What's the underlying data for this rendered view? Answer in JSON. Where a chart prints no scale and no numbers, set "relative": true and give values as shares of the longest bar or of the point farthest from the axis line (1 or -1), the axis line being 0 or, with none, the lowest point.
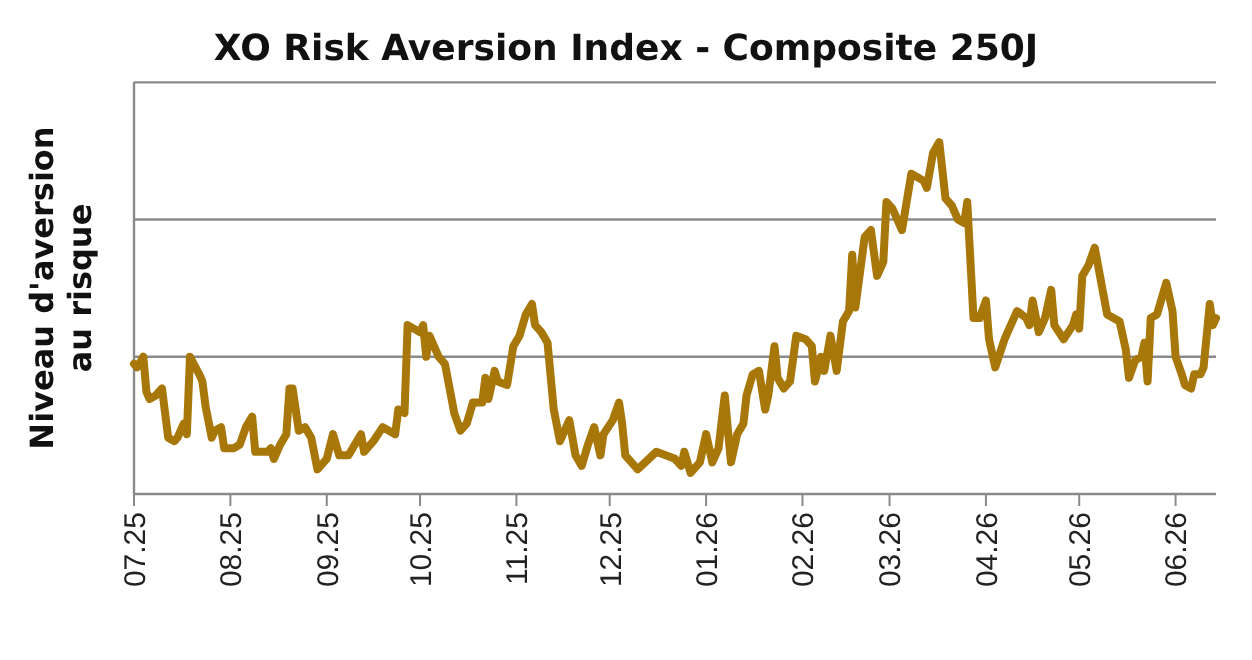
{
  "chart_data": {
    "type": "line",
    "title": "XO Risk Aversion Index - Composite 250J",
    "ylabel": "Niveau d'aversion\nau risque",
    "relative": true,
    "ref_lines": [
      {
        "axis": "y",
        "value": 0.39,
        "color": "#8a8a8a"
      },
      {
        "axis": "y",
        "value": 0.78,
        "color": "#8a8a8a"
      },
      {
        "axis": "y",
        "value": 1.17,
        "color": "#8a8a8a"
      }
    ],
    "marker": "none",
    "line_style": "solid",
    "xlim": [
      "2025-07-01",
      "2026-06-14"
    ],
    "xticks": [
      {
        "value": "2025-07-01",
        "label": "07.25"
      },
      {
        "value": "2025-08-01",
        "label": "08.25"
      },
      {
        "value": "2025-09-01",
        "label": "09.25"
      },
      {
        "value": "2025-10-01",
        "label": "10.25"
      },
      {
        "value": "2025-11-01",
        "label": "11.25"
      },
      {
        "value": "2025-12-01",
        "label": "12.25"
      },
      {
        "value": "2026-01-01",
        "label": "01.26"
      },
      {
        "value": "2026-02-01",
        "label": "02.26"
      },
      {
        "value": "2026-03-01",
        "label": "03.26"
      },
      {
        "value": "2026-04-01",
        "label": "04.26"
      },
      {
        "value": "2026-05-01",
        "label": "05.26"
      },
      {
        "value": "2026-06-01",
        "label": "06.26"
      }
    ],
    "x": [
      "2025-07-01",
      "2025-07-02",
      "2025-07-04",
      "2025-07-05",
      "2025-07-06",
      "2025-07-08",
      "2025-07-10",
      "2025-07-12",
      "2025-07-14",
      "2025-07-15",
      "2025-07-17",
      "2025-07-18",
      "2025-07-19",
      "2025-07-22",
      "2025-07-23",
      "2025-07-24",
      "2025-07-26",
      "2025-07-27",
      "2025-07-29",
      "2025-07-30",
      "2025-08-02",
      "2025-08-04",
      "2025-08-06",
      "2025-08-08",
      "2025-08-09",
      "2025-08-13",
      "2025-08-14",
      "2025-08-15",
      "2025-08-17",
      "2025-08-19",
      "2025-08-20",
      "2025-08-21",
      "2025-08-23",
      "2025-08-25",
      "2025-08-27",
      "2025-08-29",
      "2025-09-01",
      "2025-09-03",
      "2025-09-05",
      "2025-09-08",
      "2025-09-10",
      "2025-09-12",
      "2025-09-13",
      "2025-09-16",
      "2025-09-19",
      "2025-09-23",
      "2025-09-24",
      "2025-09-26",
      "2025-09-27",
      "2025-09-29",
      "2025-10-01",
      "2025-10-02",
      "2025-10-03",
      "2025-10-04",
      "2025-10-07",
      "2025-10-09",
      "2025-10-12",
      "2025-10-14",
      "2025-10-16",
      "2025-10-18",
      "2025-10-21",
      "2025-10-22",
      "2025-10-23",
      "2025-10-25",
      "2025-10-26",
      "2025-10-29",
      "2025-10-31",
      "2025-11-02",
      "2025-11-04",
      "2025-11-06",
      "2025-11-07",
      "2025-11-09",
      "2025-11-11",
      "2025-11-13",
      "2025-11-15",
      "2025-11-18",
      "2025-11-20",
      "2025-11-22",
      "2025-11-24",
      "2025-11-26",
      "2025-11-28",
      "2025-11-29",
      "2025-12-02",
      "2025-12-04",
      "2025-12-05",
      "2025-12-06",
      "2025-12-10",
      "2025-12-16",
      "2025-12-22",
      "2025-12-24",
      "2025-12-25",
      "2025-12-27",
      "2025-12-30",
      "2026-01-01",
      "2026-01-03",
      "2026-01-05",
      "2026-01-07",
      "2026-01-09",
      "2026-01-11",
      "2026-01-13",
      "2026-01-14",
      "2026-01-16",
      "2026-01-18",
      "2026-01-20",
      "2026-01-21",
      "2026-01-23",
      "2026-01-24",
      "2026-01-26",
      "2026-01-28",
      "2026-01-30",
      "2026-02-02",
      "2026-02-04",
      "2026-02-05",
      "2026-02-07",
      "2026-02-08",
      "2026-02-10",
      "2026-02-12",
      "2026-02-14",
      "2026-02-16",
      "2026-02-17",
      "2026-02-18",
      "2026-02-21",
      "2026-02-23",
      "2026-02-25",
      "2026-02-27",
      "2026-02-28",
      "2026-03-02",
      "2026-03-05",
      "2026-03-08",
      "2026-03-10",
      "2026-03-12",
      "2026-03-13",
      "2026-03-15",
      "2026-03-17",
      "2026-03-19",
      "2026-03-21",
      "2026-03-23",
      "2026-03-25",
      "2026-03-26",
      "2026-03-28",
      "2026-03-30",
      "2026-04-01",
      "2026-04-02",
      "2026-04-04",
      "2026-04-07",
      "2026-04-09",
      "2026-04-11",
      "2026-04-14",
      "2026-04-15",
      "2026-04-16",
      "2026-04-18",
      "2026-04-20",
      "2026-04-22",
      "2026-04-23",
      "2026-04-26",
      "2026-04-29",
      "2026-04-30",
      "2026-05-01",
      "2026-05-02",
      "2026-05-04",
      "2026-05-06",
      "2026-05-10",
      "2026-05-12",
      "2026-05-14",
      "2026-05-16",
      "2026-05-17",
      "2026-05-19",
      "2026-05-21",
      "2026-05-22",
      "2026-05-23",
      "2026-05-24",
      "2026-05-26",
      "2026-05-29",
      "2026-05-31",
      "2026-06-01",
      "2026-06-03",
      "2026-06-04",
      "2026-06-06",
      "2026-06-07",
      "2026-06-09",
      "2026-06-10",
      "2026-06-12",
      "2026-06-13",
      "2026-06-14"
    ],
    "series": [
      {
        "color": "#a8770a",
        "values": [
          0.37,
          0.36,
          0.39,
          0.29,
          0.27,
          0.28,
          0.3,
          0.16,
          0.15,
          0.16,
          0.2,
          0.17,
          0.39,
          0.34,
          0.32,
          0.25,
          0.16,
          0.18,
          0.19,
          0.13,
          0.13,
          0.14,
          0.19,
          0.22,
          0.12,
          0.12,
          0.13,
          0.1,
          0.14,
          0.17,
          0.3,
          0.3,
          0.18,
          0.19,
          0.16,
          0.07,
          0.1,
          0.17,
          0.11,
          0.11,
          0.14,
          0.17,
          0.12,
          0.15,
          0.19,
          0.17,
          0.24,
          0.23,
          0.48,
          0.47,
          0.46,
          0.48,
          0.39,
          0.45,
          0.39,
          0.37,
          0.23,
          0.18,
          0.2,
          0.26,
          0.26,
          0.33,
          0.27,
          0.35,
          0.32,
          0.31,
          0.42,
          0.45,
          0.51,
          0.54,
          0.48,
          0.46,
          0.43,
          0.24,
          0.15,
          0.21,
          0.11,
          0.08,
          0.14,
          0.19,
          0.11,
          0.17,
          0.21,
          0.26,
          0.2,
          0.11,
          0.07,
          0.12,
          0.1,
          0.08,
          0.12,
          0.06,
          0.09,
          0.17,
          0.09,
          0.13,
          0.28,
          0.09,
          0.17,
          0.2,
          0.28,
          0.34,
          0.35,
          0.24,
          0.28,
          0.42,
          0.33,
          0.3,
          0.32,
          0.45,
          0.44,
          0.42,
          0.32,
          0.39,
          0.35,
          0.45,
          0.35,
          0.49,
          0.52,
          0.68,
          0.53,
          0.73,
          0.75,
          0.62,
          0.66,
          0.83,
          0.81,
          0.75,
          0.91,
          0.9,
          0.89,
          0.87,
          0.97,
          1,
          0.84,
          0.82,
          0.78,
          0.77,
          0.83,
          0.5,
          0.5,
          0.55,
          0.44,
          0.36,
          0.44,
          0.48,
          0.52,
          0.5,
          0.48,
          0.55,
          0.46,
          0.5,
          0.58,
          0.48,
          0.44,
          0.48,
          0.51,
          0.47,
          0.62,
          0.65,
          0.7,
          0.51,
          0.5,
          0.49,
          0.41,
          0.33,
          0.38,
          0.39,
          0.43,
          0.32,
          0.5,
          0.51,
          0.6,
          0.52,
          0.39,
          0.34,
          0.31,
          0.3,
          0.34,
          0.34,
          0.36,
          0.54,
          0.48,
          0.5
        ]
      }
    ]
  }
}
